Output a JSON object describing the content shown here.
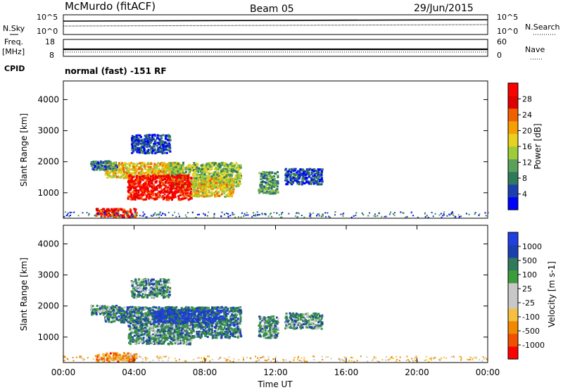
{
  "header": {
    "station": "McMurdo (fitACF)",
    "beam": "Beam 05",
    "date": "29/Jun/2015",
    "cpid_label": "CPID",
    "cpid_value": "normal (fast) -151 RF"
  },
  "chart_data": [
    {
      "type": "line",
      "name": "noise-panel",
      "left_label": "N.Sky",
      "right_label": "N.Search",
      "left_ticks": [
        "10^5",
        "10^0"
      ],
      "right_ticks": [
        "10^5",
        "10^0"
      ]
    },
    {
      "type": "line",
      "name": "freq-panel",
      "left_label_line1": "Freq.",
      "left_label_line2": "[MHz]",
      "right_label": "Nave",
      "left_ticks": [
        "18",
        "8"
      ],
      "right_ticks": [
        "60",
        "0"
      ]
    },
    {
      "type": "heatmap",
      "name": "power",
      "ylabel": "Slant Range [km]",
      "yticks": [
        1000,
        2000,
        3000,
        4000
      ],
      "ylim": [
        180,
        4600
      ],
      "xlim": [
        0,
        24
      ],
      "colorbar_label": "Power [dB]",
      "colorbar_ticks": [
        "28",
        "24",
        "20",
        "16",
        "12",
        "8",
        "4"
      ],
      "colors": [
        "#0000ff",
        "#1c3fb0",
        "#2e7a5a",
        "#5aa05a",
        "#9ccc3a",
        "#e8d020",
        "#f5a000",
        "#f06000",
        "#e00000",
        "#ff0000"
      ],
      "patches": [
        {
          "t0": 2.3,
          "t1": 6.6,
          "r0": 1500,
          "r1": 2000,
          "level": 0.58
        },
        {
          "t0": 6.0,
          "t1": 10.0,
          "r0": 1200,
          "r1": 2000,
          "level": 0.42
        },
        {
          "t0": 3.6,
          "t1": 7.2,
          "r0": 800,
          "r1": 1600,
          "level": 0.9
        },
        {
          "t0": 7.2,
          "t1": 9.6,
          "r0": 900,
          "r1": 1500,
          "level": 0.55
        },
        {
          "t0": 1.5,
          "t1": 3.0,
          "r0": 1750,
          "r1": 2050,
          "level": 0.25
        },
        {
          "t0": 1.8,
          "t1": 4.1,
          "r0": 250,
          "r1": 520,
          "level": 0.85
        },
        {
          "t0": 11.0,
          "t1": 12.1,
          "r0": 1000,
          "r1": 1700,
          "level": 0.3
        },
        {
          "t0": 12.5,
          "t1": 14.6,
          "r0": 1300,
          "r1": 1800,
          "level": 0.15
        },
        {
          "t0": 3.8,
          "t1": 6.0,
          "r0": 2300,
          "r1": 2900,
          "level": 0.15
        }
      ]
    },
    {
      "type": "heatmap",
      "name": "velocity",
      "ylabel": "Slant Range [km]",
      "yticks": [
        1000,
        2000,
        3000,
        4000
      ],
      "ylim": [
        180,
        4600
      ],
      "xlim": [
        0,
        24
      ],
      "xlabel": "Time UT",
      "xticks": [
        "00:00",
        "04:00",
        "08:00",
        "12:00",
        "16:00",
        "20:00",
        "00:00"
      ],
      "colorbar_label": "Velocity [m s-1]",
      "colorbar_ticks": [
        "1000",
        "500",
        "100",
        "25",
        "-25",
        "-100",
        "-500",
        "-1000"
      ],
      "colors": [
        "#ff0000",
        "#f05000",
        "#f08800",
        "#f5c040",
        "#c8c8c8",
        "#c8c8c8",
        "#3c9c3c",
        "#2e7a5a",
        "#1c3fb0",
        "#2040e0"
      ],
      "patches": [
        {
          "t0": 2.3,
          "t1": 6.6,
          "r0": 1500,
          "r1": 2000,
          "level": 0.75
        },
        {
          "t0": 5.5,
          "t1": 10.0,
          "r0": 1000,
          "r1": 2000,
          "level": 0.75
        },
        {
          "t0": 3.6,
          "t1": 7.2,
          "r0": 800,
          "r1": 1600,
          "level": 0.7
        },
        {
          "t0": 5.0,
          "t1": 9.0,
          "r0": 1500,
          "r1": 1900,
          "level": 0.92
        },
        {
          "t0": 1.5,
          "t1": 3.0,
          "r0": 1750,
          "r1": 2050,
          "level": 0.7
        },
        {
          "t0": 1.8,
          "t1": 4.1,
          "r0": 250,
          "r1": 520,
          "level": 0.25
        },
        {
          "t0": 11.0,
          "t1": 12.1,
          "r0": 1000,
          "r1": 1700,
          "level": 0.68
        },
        {
          "t0": 12.5,
          "t1": 14.6,
          "r0": 1300,
          "r1": 1800,
          "level": 0.7
        },
        {
          "t0": 3.8,
          "t1": 6.0,
          "r0": 2300,
          "r1": 2900,
          "level": 0.7
        }
      ]
    }
  ]
}
